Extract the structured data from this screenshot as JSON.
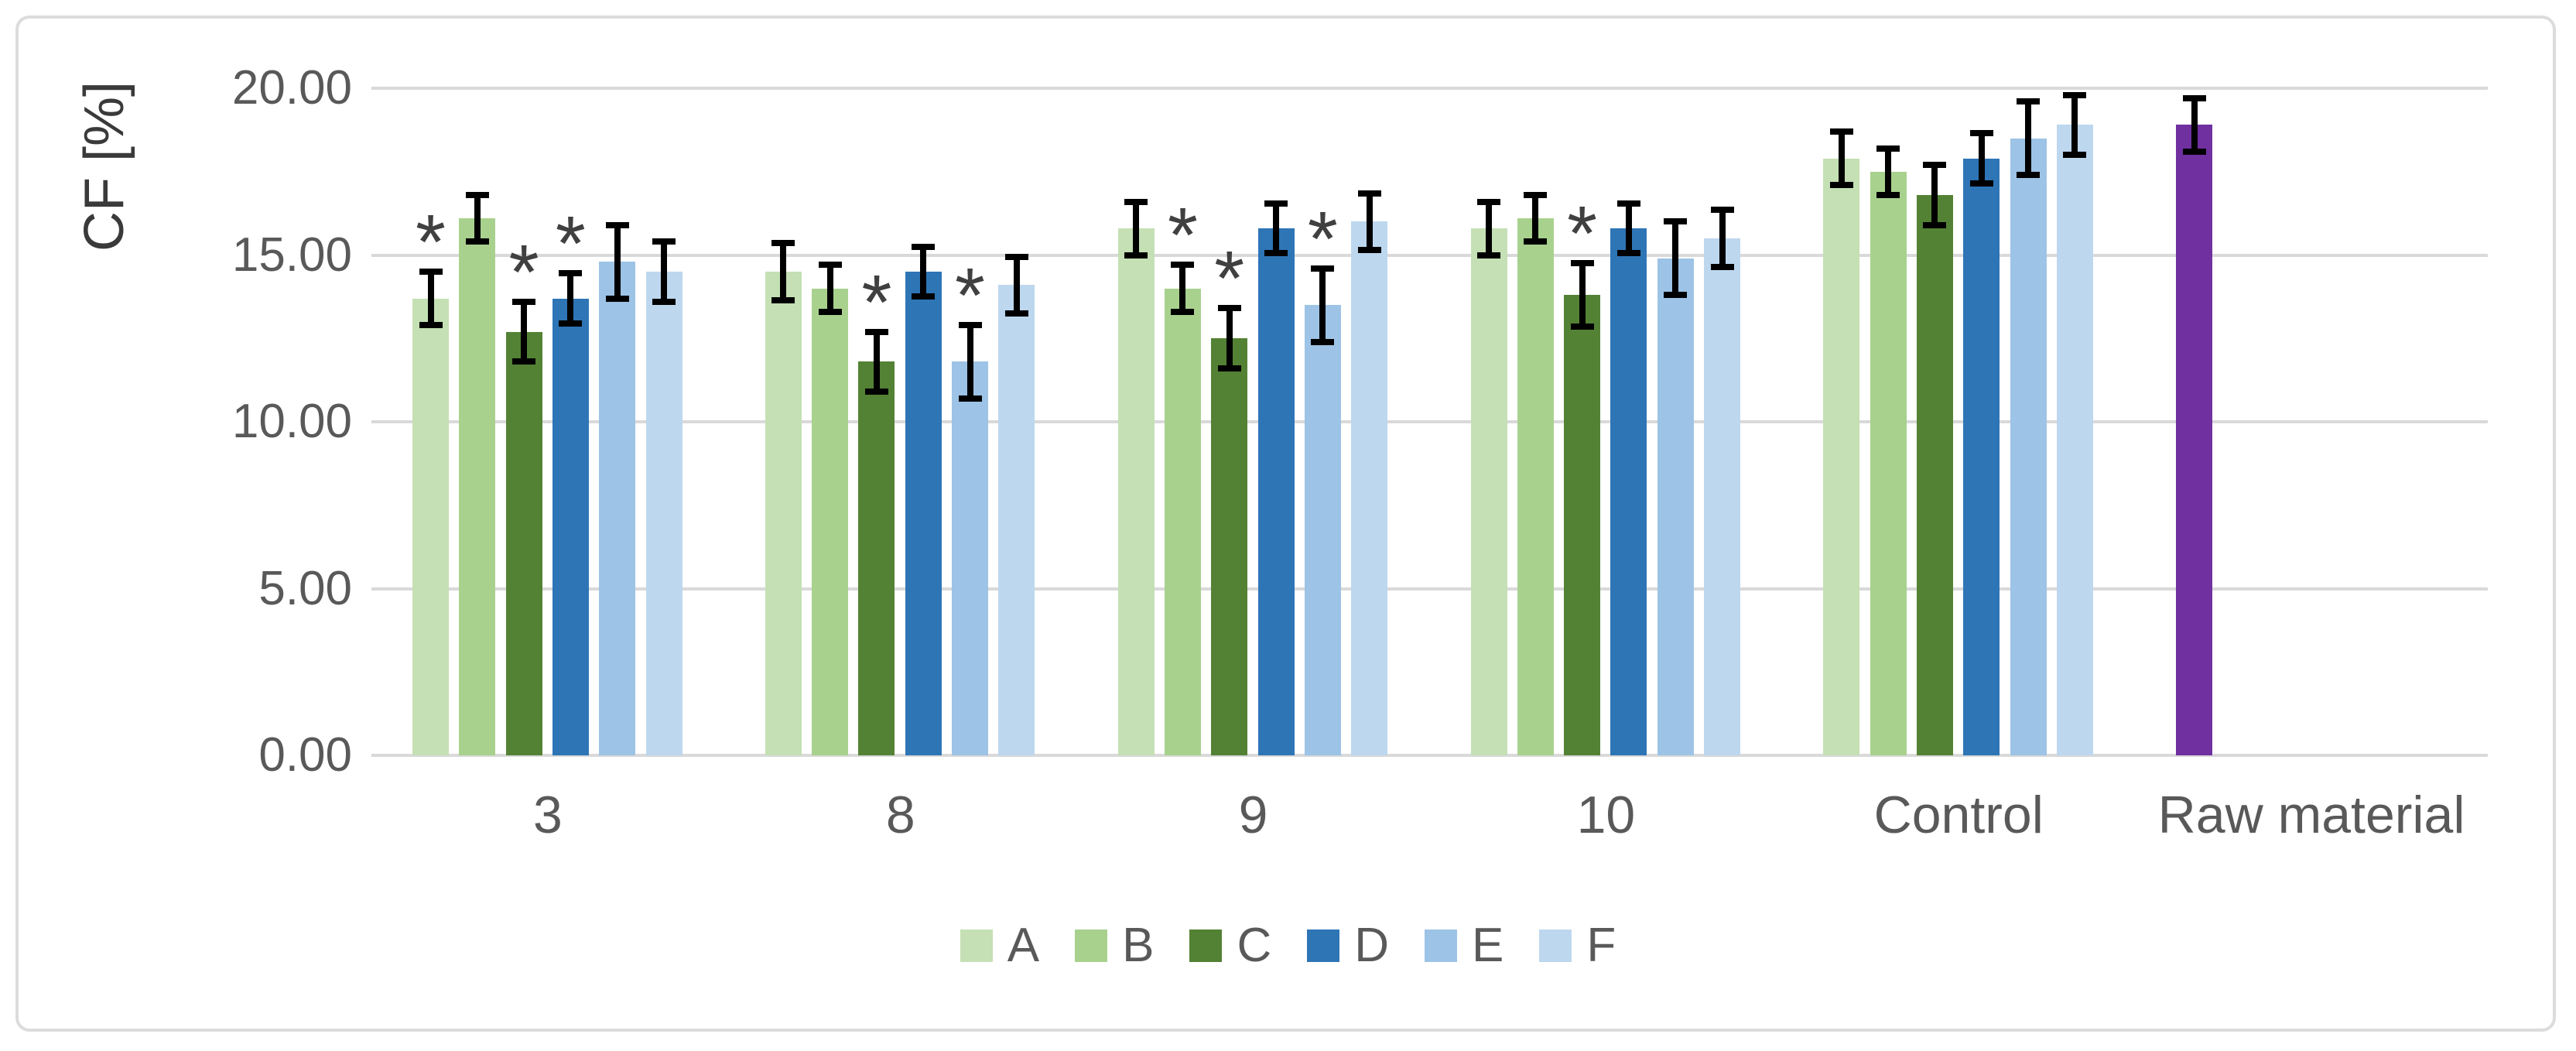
{
  "chart_data": {
    "type": "bar",
    "title": "",
    "xlabel": "",
    "ylabel": "CF [%]",
    "ylim": [
      0,
      20
    ],
    "grid": true,
    "legend_position": "bottom",
    "significance_marker": "*",
    "yticks": [
      {
        "value": 0,
        "label": "0.00"
      },
      {
        "value": 5,
        "label": "5.00"
      },
      {
        "value": 10,
        "label": "10.00"
      },
      {
        "value": 15,
        "label": "15.00"
      },
      {
        "value": 20,
        "label": "20.00"
      }
    ],
    "categories": [
      "3",
      "8",
      "9",
      "10",
      "Control",
      "Raw material"
    ],
    "series": [
      {
        "name": "A",
        "color": "#c5e0b4",
        "in_legend": true,
        "slot": 0,
        "values": [
          13.7,
          14.5,
          15.8,
          15.8,
          17.9,
          null
        ],
        "errors": [
          0.8,
          0.85,
          0.8,
          0.8,
          0.8,
          null
        ],
        "significant": [
          true,
          false,
          false,
          false,
          false,
          false
        ]
      },
      {
        "name": "B",
        "color": "#a9d18e",
        "in_legend": true,
        "slot": 1,
        "values": [
          16.1,
          14.0,
          14.0,
          16.1,
          17.5,
          null
        ],
        "errors": [
          0.7,
          0.7,
          0.7,
          0.7,
          0.7,
          null
        ],
        "significant": [
          false,
          false,
          true,
          false,
          false,
          false
        ]
      },
      {
        "name": "C",
        "color": "#548235",
        "in_legend": true,
        "slot": 2,
        "values": [
          12.7,
          11.8,
          12.5,
          13.8,
          16.8,
          null
        ],
        "errors": [
          0.9,
          0.9,
          0.9,
          0.95,
          0.9,
          null
        ],
        "significant": [
          true,
          true,
          true,
          true,
          false,
          false
        ]
      },
      {
        "name": "D",
        "color": "#2e75b6",
        "in_legend": true,
        "slot": 3,
        "values": [
          13.7,
          14.5,
          15.8,
          15.8,
          17.9,
          null
        ],
        "errors": [
          0.75,
          0.75,
          0.75,
          0.75,
          0.75,
          null
        ],
        "significant": [
          true,
          false,
          false,
          false,
          false,
          false
        ]
      },
      {
        "name": "E",
        "color": "#9dc3e6",
        "in_legend": true,
        "slot": 4,
        "values": [
          14.8,
          11.8,
          13.5,
          14.9,
          18.5,
          null
        ],
        "errors": [
          1.1,
          1.1,
          1.1,
          1.1,
          1.1,
          null
        ],
        "significant": [
          false,
          true,
          true,
          false,
          false,
          false
        ]
      },
      {
        "name": "F",
        "color": "#bdd7ee",
        "in_legend": true,
        "slot": 5,
        "values": [
          14.5,
          14.1,
          16.0,
          15.5,
          18.9,
          null
        ],
        "errors": [
          0.9,
          0.85,
          0.85,
          0.85,
          0.9,
          null
        ],
        "significant": [
          false,
          false,
          false,
          false,
          false,
          false
        ]
      },
      {
        "name": "Raw material",
        "color": "#7030a0",
        "in_legend": false,
        "slot": 0,
        "values": [
          null,
          null,
          null,
          null,
          null,
          18.9
        ],
        "errors": [
          null,
          null,
          null,
          null,
          null,
          0.8
        ],
        "significant": [
          false,
          false,
          false,
          false,
          false,
          false
        ]
      }
    ],
    "theme": {
      "gridline_color": "#d9d9d9",
      "frame_border_color": "#dcdcdc",
      "tick_label_color": "#595959",
      "axis_title_color": "#3a3a3a",
      "error_bar_color": "#000000",
      "marker_color": "#404040",
      "background": "#ffffff"
    }
  }
}
